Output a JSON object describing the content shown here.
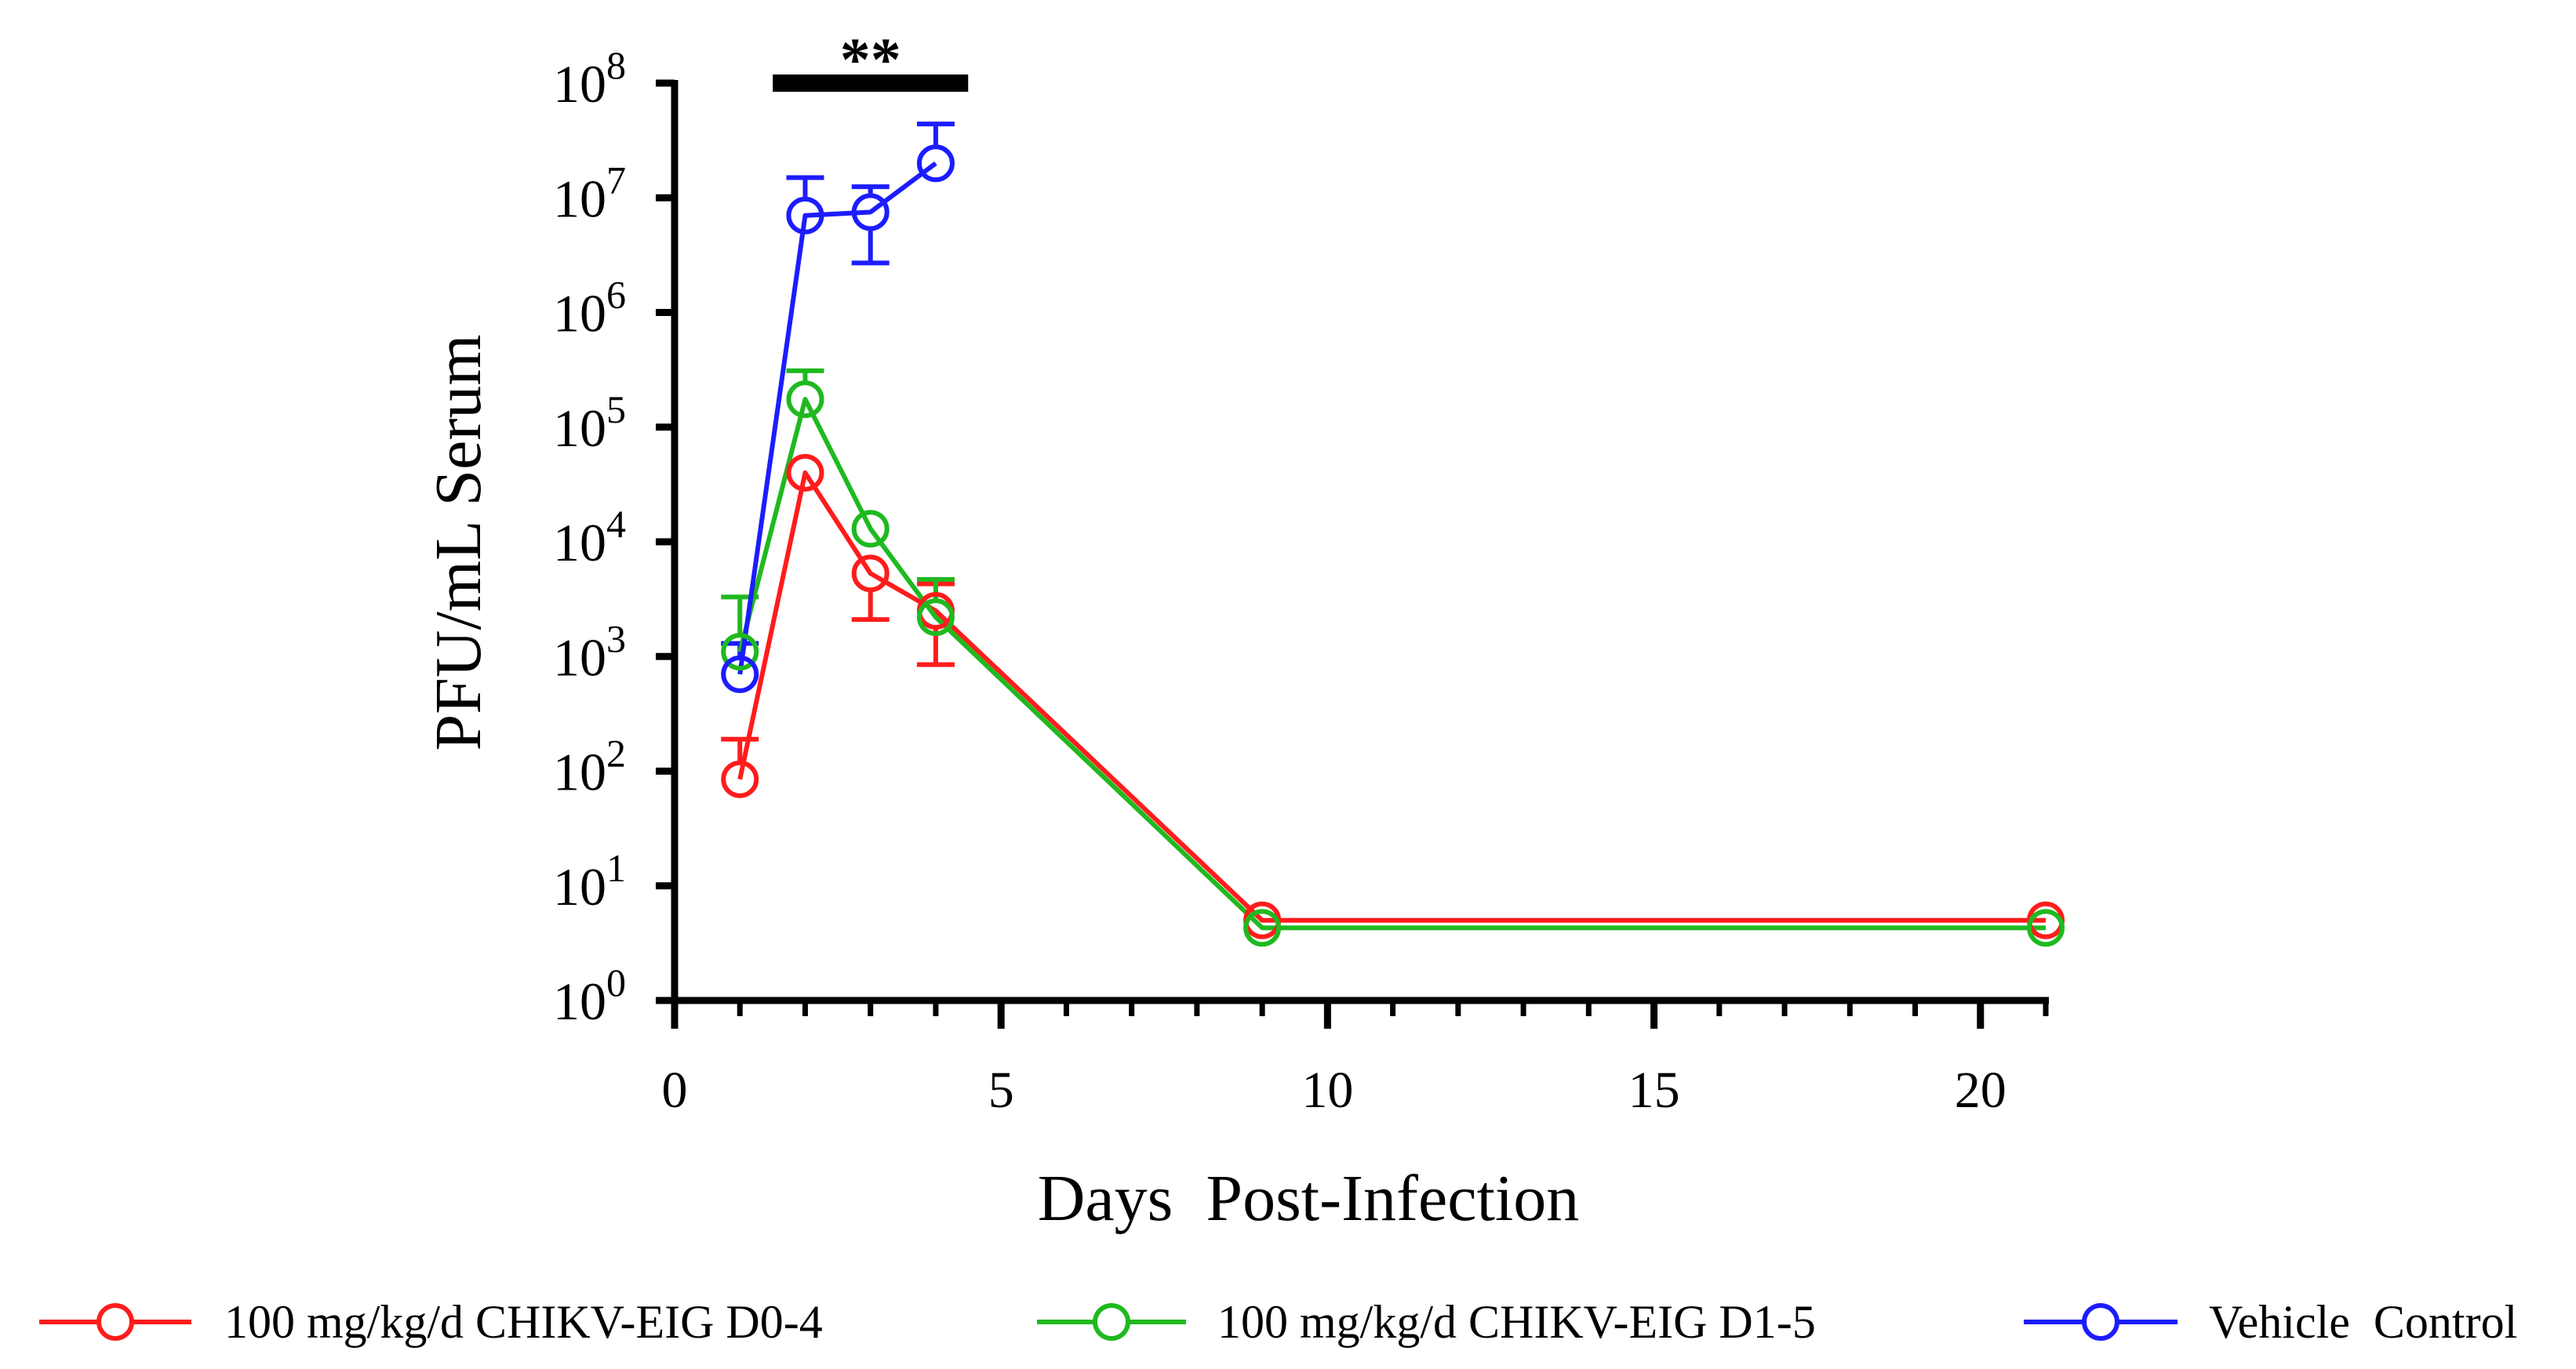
{
  "chart_data": {
    "type": "line",
    "title": "",
    "xlabel": "Days  Post-Infection",
    "ylabel": "PFU/mL Serum",
    "xlim": [
      0,
      21
    ],
    "ylim_log10": [
      0,
      8
    ],
    "y_scale": "log",
    "x_ticks": [
      0,
      5,
      10,
      15,
      20
    ],
    "x_minor_step": 1,
    "y_ticks": [
      {
        "base": "10",
        "exp": "0"
      },
      {
        "base": "10",
        "exp": "1"
      },
      {
        "base": "10",
        "exp": "2"
      },
      {
        "base": "10",
        "exp": "3"
      },
      {
        "base": "10",
        "exp": "4"
      },
      {
        "base": "10",
        "exp": "5"
      },
      {
        "base": "10",
        "exp": "6"
      },
      {
        "base": "10",
        "exp": "7"
      },
      {
        "base": "10",
        "exp": "8"
      }
    ],
    "significance": {
      "label": "**",
      "x_start": 1.6,
      "x_end": 4.4,
      "y_log10": 8
    },
    "series": [
      {
        "name": "100 mg/kg/d CHIKV-EIG D0-4",
        "color": "#ff1c1c",
        "points": [
          {
            "x": 1,
            "y": 85,
            "err_low": 85,
            "err_high": 190
          },
          {
            "x": 2,
            "y": 40000,
            "err_low": 40000,
            "err_high": 40000
          },
          {
            "x": 3,
            "y": 5300,
            "err_low": 2100,
            "err_high": 5300
          },
          {
            "x": 4,
            "y": 2500,
            "err_low": 850,
            "err_high": 4300
          },
          {
            "x": 9,
            "y": 5,
            "err_low": 5,
            "err_high": 5
          },
          {
            "x": 21,
            "y": 5,
            "err_low": 5,
            "err_high": 5
          }
        ]
      },
      {
        "name": "100 mg/kg/d CHIKV-EIG D1-5",
        "color": "#1fb91f",
        "points": [
          {
            "x": 1,
            "y": 1100,
            "err_low": 1100,
            "err_high": 3300
          },
          {
            "x": 2,
            "y": 175000,
            "err_low": 175000,
            "err_high": 310000
          },
          {
            "x": 3,
            "y": 13000,
            "err_low": 13000,
            "err_high": 13000
          },
          {
            "x": 4,
            "y": 2200,
            "err_low": 2200,
            "err_high": 4700
          },
          {
            "x": 9,
            "y": 4.3,
            "err_low": 4.3,
            "err_high": 4.3
          },
          {
            "x": 21,
            "y": 4.3,
            "err_low": 4.3,
            "err_high": 4.3
          }
        ]
      },
      {
        "name": "Vehicle  Control",
        "color": "#1c1cff",
        "points": [
          {
            "x": 1,
            "y": 700,
            "err_low": 700,
            "err_high": 1300
          },
          {
            "x": 2,
            "y": 7000000,
            "err_low": 7000000,
            "err_high": 15000000
          },
          {
            "x": 3,
            "y": 7500000,
            "err_low": 2700000,
            "err_high": 12500000
          },
          {
            "x": 4,
            "y": 20000000,
            "err_low": 20000000,
            "err_high": 44000000
          }
        ]
      }
    ],
    "legend_position": "bottom"
  }
}
